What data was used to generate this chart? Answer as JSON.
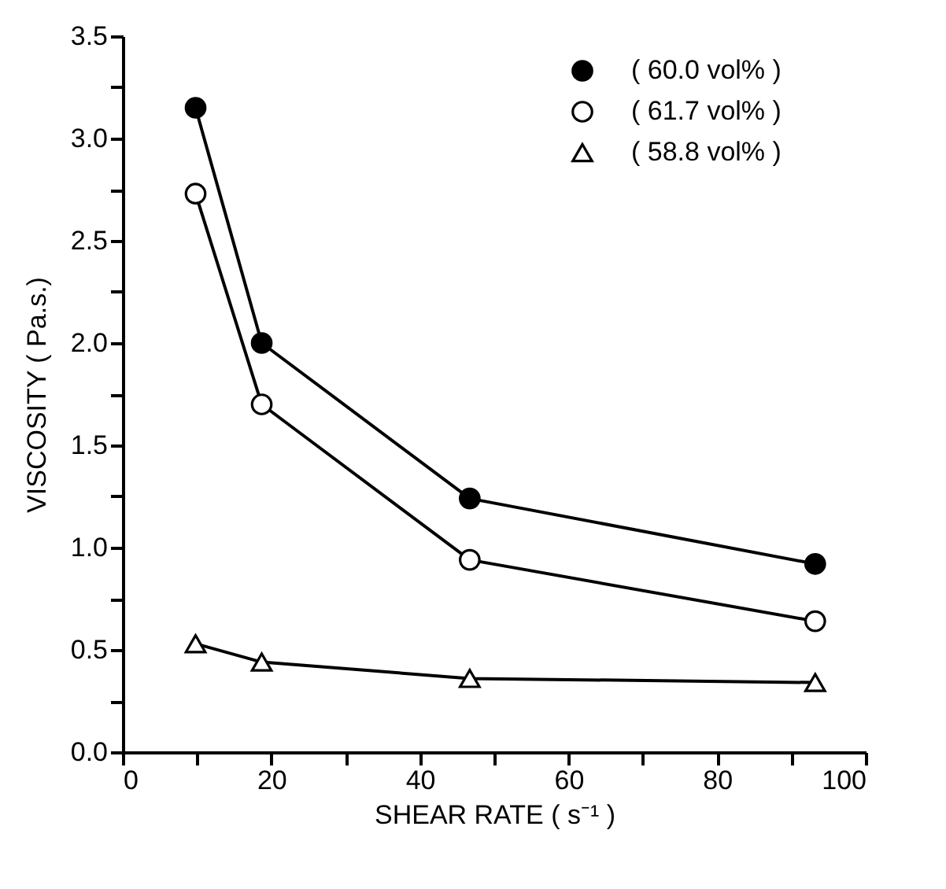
{
  "chart_data": {
    "type": "line",
    "xlabel": "SHEAR RATE ( s⁻¹ )",
    "ylabel": "VISCOSITY ( Pa.s.)",
    "x": [
      9.8,
      18.7,
      46.7,
      93.2
    ],
    "series": [
      {
        "name": "( 60.0 vol% )",
        "color": "#000000",
        "marker": "circle",
        "values": [
          3.15,
          2.0,
          1.24,
          0.92
        ]
      },
      {
        "name": "( 61.7 vol% )",
        "color": "#000000",
        "marker": "circle",
        "values": [
          2.73,
          1.7,
          0.94,
          0.64
        ]
      },
      {
        "name": "( 58.8 vol% )",
        "color": "#000000",
        "marker": "triangle",
        "values": [
          0.53,
          0.44,
          0.36,
          0.34
        ]
      }
    ],
    "xlim": [
      0,
      100
    ],
    "ylim": [
      0,
      3.5
    ],
    "xticks": [
      0,
      {
        "value": 10,
        "label": null
      },
      20,
      {
        "value": 30,
        "label": null
      },
      40,
      {
        "value": 50,
        "label": null
      },
      60,
      {
        "value": 70,
        "label": null
      },
      80,
      {
        "value": 90,
        "label": null
      },
      100
    ],
    "yticks": [
      {
        "value": 0,
        "label": "0.0"
      },
      {
        "value": 0.25,
        "label": null
      },
      {
        "value": 0.5,
        "label": "0.5"
      },
      {
        "value": 0.75,
        "label": null
      },
      {
        "value": 1,
        "label": "1.0"
      },
      {
        "value": 1.25,
        "label": null
      },
      {
        "value": 1.5,
        "label": "1.5"
      },
      {
        "value": 1.75,
        "label": null
      },
      {
        "value": 2,
        "label": "2.0"
      },
      {
        "value": 2.25,
        "label": null
      },
      {
        "value": 2.5,
        "label": "2.5"
      },
      {
        "value": 2.75,
        "label": null
      },
      {
        "value": 3,
        "label": "3.0"
      },
      {
        "value": 3.25,
        "label": null
      },
      {
        "value": 3.5,
        "label": "3.5"
      }
    ],
    "grid": false,
    "legend": "top right",
    "line_style": "solid"
  }
}
